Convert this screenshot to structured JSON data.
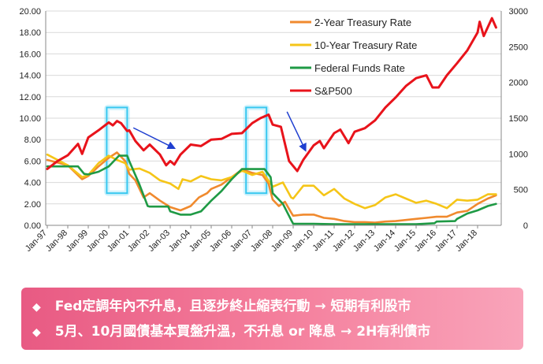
{
  "chart_data": {
    "type": "line",
    "y_left": {
      "min": 0,
      "max": 20,
      "step": 2,
      "tick_labels": [
        "0.00",
        "2.00",
        "4.00",
        "6.00",
        "8.00",
        "10.00",
        "12.00",
        "14.00",
        "16.00",
        "18.00",
        "20.00"
      ]
    },
    "y_right": {
      "min": 0,
      "max": 3000,
      "step": 500,
      "tick_labels": [
        "0",
        "500",
        "1000",
        "1500",
        "2000",
        "2500",
        "3000"
      ]
    },
    "x_axis": {
      "min": 1997.0,
      "max": 2019.0,
      "tick_labels": [
        "Jan-97",
        "Jan-98",
        "Jan-99",
        "Jan-00",
        "Jan-01",
        "Jan-02",
        "Jan-03",
        "Jan-04",
        "Jan-05",
        "Jan-06",
        "Jan-07",
        "Jan-08",
        "Jan-09",
        "Jan-10",
        "Jan-11",
        "Jan-12",
        "Jan-13",
        "Jan-14",
        "Jan-15",
        "Jan-16",
        "Jan-17",
        "Jan-18"
      ]
    },
    "series": [
      {
        "name": "2-Year Treasury Rate",
        "axis": "left",
        "color": "#f08a2e",
        "x": [
          1997.0,
          1998.0,
          1998.7,
          1999.0,
          1999.5,
          2000.0,
          2000.4,
          2000.8,
          2001.0,
          2001.3,
          2001.7,
          2002.0,
          2002.5,
          2003.0,
          2003.5,
          2004.0,
          2004.4,
          2004.8,
          2005.0,
          2005.5,
          2006.0,
          2006.5,
          2007.0,
          2007.5,
          2007.8,
          2008.0,
          2008.3,
          2008.6,
          2008.9,
          2009.0,
          2009.5,
          2010.0,
          2010.5,
          2011.0,
          2011.5,
          2012.0,
          2012.5,
          2013.0,
          2013.5,
          2014.0,
          2014.5,
          2015.0,
          2015.5,
          2016.0,
          2016.5,
          2017.0,
          2017.5,
          2018.0,
          2018.5,
          2018.9
        ],
        "y": [
          6.1,
          5.6,
          4.3,
          4.6,
          5.5,
          6.3,
          6.8,
          6.0,
          4.8,
          4.2,
          2.6,
          3.0,
          2.3,
          1.7,
          1.4,
          1.8,
          2.6,
          3.0,
          3.4,
          3.8,
          4.5,
          5.2,
          4.9,
          4.7,
          3.9,
          2.4,
          1.8,
          2.2,
          1.2,
          0.9,
          1.0,
          1.0,
          0.7,
          0.6,
          0.4,
          0.3,
          0.3,
          0.25,
          0.35,
          0.4,
          0.5,
          0.6,
          0.7,
          0.8,
          0.8,
          1.2,
          1.35,
          2.0,
          2.5,
          2.8
        ]
      },
      {
        "name": "10-Year Treasury Rate",
        "axis": "left",
        "color": "#f5c518",
        "x": [
          1997.0,
          1998.0,
          1998.7,
          1999.0,
          1999.5,
          2000.0,
          2000.4,
          2000.8,
          2001.0,
          2001.5,
          2002.0,
          2002.5,
          2003.0,
          2003.4,
          2003.6,
          2004.0,
          2004.5,
          2005.0,
          2005.5,
          2006.0,
          2006.5,
          2007.0,
          2007.5,
          2008.0,
          2008.5,
          2008.9,
          2009.0,
          2009.5,
          2010.0,
          2010.5,
          2011.0,
          2011.5,
          2012.0,
          2012.5,
          2013.0,
          2013.5,
          2014.0,
          2014.5,
          2015.0,
          2015.5,
          2016.0,
          2016.5,
          2017.0,
          2017.5,
          2018.0,
          2018.5,
          2018.9
        ],
        "y": [
          6.6,
          5.6,
          4.5,
          4.7,
          5.8,
          6.5,
          6.1,
          5.8,
          5.2,
          5.3,
          4.9,
          4.2,
          3.9,
          3.4,
          4.3,
          4.1,
          4.6,
          4.3,
          4.2,
          4.5,
          5.1,
          4.7,
          5.0,
          3.6,
          4.0,
          2.6,
          2.5,
          3.7,
          3.7,
          2.8,
          3.4,
          2.5,
          2.0,
          1.6,
          1.9,
          2.6,
          2.9,
          2.5,
          2.1,
          2.3,
          2.0,
          1.6,
          2.4,
          2.3,
          2.4,
          2.9,
          2.9
        ]
      },
      {
        "name": "Federal Funds Rate",
        "axis": "left",
        "color": "#1f9a45",
        "x": [
          1997.0,
          1998.5,
          1998.8,
          1999.0,
          1999.5,
          2000.0,
          2000.5,
          2000.9,
          2001.0,
          2001.5,
          2001.9,
          2002.0,
          2002.9,
          2003.0,
          2003.5,
          2004.0,
          2004.5,
          2005.0,
          2005.5,
          2006.0,
          2006.5,
          2007.0,
          2007.6,
          2007.9,
          2008.0,
          2008.5,
          2008.9,
          2009.0,
          2010.0,
          2011.0,
          2012.0,
          2013.0,
          2014.0,
          2015.0,
          2015.9,
          2016.0,
          2016.9,
          2017.0,
          2017.5,
          2018.0,
          2018.5,
          2018.9
        ],
        "y": [
          5.5,
          5.5,
          4.8,
          4.75,
          5.0,
          5.5,
          6.5,
          6.5,
          6.0,
          3.8,
          1.8,
          1.75,
          1.75,
          1.3,
          1.0,
          1.0,
          1.3,
          2.3,
          3.2,
          4.3,
          5.25,
          5.25,
          5.25,
          4.5,
          3.0,
          2.0,
          0.5,
          0.15,
          0.15,
          0.1,
          0.1,
          0.1,
          0.1,
          0.1,
          0.2,
          0.35,
          0.4,
          0.6,
          1.1,
          1.4,
          1.8,
          2.0
        ]
      },
      {
        "name": "S&P500",
        "axis": "right",
        "color": "#e8131b",
        "x": [
          1997.0,
          1997.5,
          1998.0,
          1998.5,
          1998.7,
          1999.0,
          1999.5,
          2000.0,
          2000.2,
          2000.4,
          2000.6,
          2000.9,
          2001.0,
          2001.3,
          2001.7,
          2002.0,
          2002.5,
          2002.8,
          2003.0,
          2003.2,
          2003.5,
          2004.0,
          2004.5,
          2005.0,
          2005.5,
          2006.0,
          2006.5,
          2007.0,
          2007.4,
          2007.8,
          2008.0,
          2008.4,
          2008.8,
          2009.2,
          2009.5,
          2010.0,
          2010.3,
          2010.5,
          2011.0,
          2011.3,
          2011.7,
          2012.0,
          2012.5,
          2013.0,
          2013.5,
          2014.0,
          2014.5,
          2015.0,
          2015.5,
          2015.8,
          2016.1,
          2016.5,
          2017.0,
          2017.5,
          2018.0,
          2018.1,
          2018.3,
          2018.7,
          2018.9
        ],
        "y": [
          790,
          900,
          980,
          1140,
          1000,
          1230,
          1330,
          1440,
          1400,
          1460,
          1430,
          1320,
          1330,
          1180,
          1050,
          1130,
          990,
          840,
          900,
          850,
          990,
          1130,
          1110,
          1200,
          1210,
          1280,
          1290,
          1430,
          1500,
          1550,
          1410,
          1380,
          900,
          760,
          920,
          1120,
          1180,
          1080,
          1290,
          1340,
          1150,
          1310,
          1360,
          1470,
          1650,
          1790,
          1950,
          2060,
          2100,
          1930,
          1930,
          2100,
          2270,
          2450,
          2700,
          2850,
          2650,
          2900,
          2770
        ]
      }
    ],
    "legend": [
      "2-Year Treasury Rate",
      "10-Year Treasury Rate",
      "Federal Funds Rate",
      "S&P500"
    ],
    "legend_position": "top-right",
    "highlight_boxes": [
      {
        "x_start": 1999.9,
        "x_end": 2000.9,
        "y_start": 3.0,
        "y_end": 11.0,
        "color": "#38c8f0"
      },
      {
        "x_start": 2006.7,
        "x_end": 2007.7,
        "y_start": 3.0,
        "y_end": 11.0,
        "color": "#38c8f0"
      }
    ],
    "arrows": [
      {
        "from_x": 2001.2,
        "from_y": 9.1,
        "to_x": 2003.2,
        "to_y": 7.2,
        "color": "#1f3fd0"
      },
      {
        "from_x": 2008.7,
        "from_y": 10.6,
        "to_x": 2009.6,
        "to_y": 7.0,
        "color": "#1f3fd0"
      }
    ]
  },
  "banner": {
    "lines": [
      {
        "bullet": "◆",
        "text": "Fed定調年內不升息，且逐步終止縮表行動 → 短期有利股市"
      },
      {
        "bullet": "◆",
        "text": "5月、10月國債基本買盤升溫，不升息 or 降息 → 2H有利債市"
      }
    ]
  }
}
